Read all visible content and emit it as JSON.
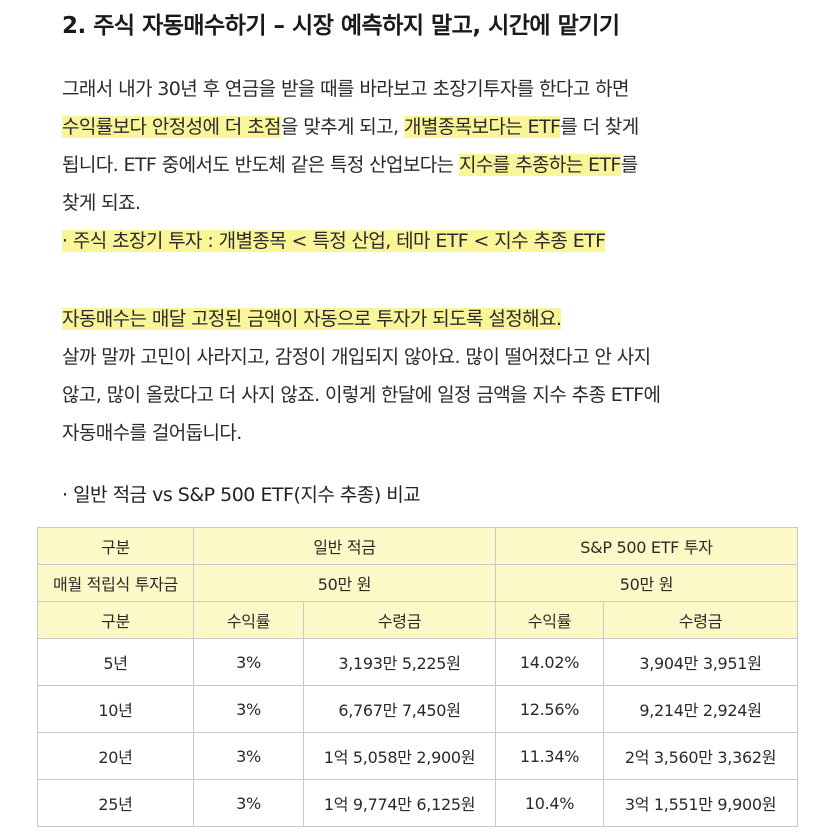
{
  "title": "2. 주식 자동매수하기 – 시장 예측하지 말고, 시간에 맡기기",
  "para1": {
    "l1": "그래서 내가 30년 후 연금을 받을 때를 바라보고 초장기투자를 한다고 하면",
    "l2a": "수익률보다 안정성에 더 초점",
    "l2b": "을 맞추게 되고, ",
    "l2c": "개별종목보다는 ETF",
    "l2d": "를 더 찾게",
    "l3a": "됩니다. ETF 중에서도 반도체 같은 특정 산업보다는 ",
    "l3b": "지수를 추종하는 ETF",
    "l3c": "를",
    "l4": "찾게 되죠.",
    "l5": "· 주식 초장기 투자 : 개별종목 < 특정 산업, 테마 ETF < 지수 추종 ETF"
  },
  "para2": {
    "l1": "자동매수는 매달 고정된 금액이 자동으로 투자가 되도록 설정해요.",
    "l2": "살까 말까 고민이 사라지고, 감정이 개입되지 않아요. 많이 떨어졌다고 안 사지",
    "l3": "않고, 많이 올랐다고 더 사지 않죠. 이렇게 한달에 일정 금액을 지수 추종 ETF에",
    "l4": "자동매수를 걸어둡니다."
  },
  "subhead": "· 일반 적금 vs S&P 500 ETF(지수 추종) 비교",
  "table": {
    "h_gubun": "구분",
    "h_savings": "일반 적금",
    "h_etf": "S&P 500 ETF 투자",
    "monthly_label": "매월 적립식 투자금",
    "savings_amount": "50만 원",
    "etf_amount": "50만 원",
    "sub_gubun": "구분",
    "sub_rate1": "수익률",
    "sub_amount1": "수령금",
    "sub_rate2": "수익률",
    "sub_amount2": "수령금",
    "rows": [
      {
        "period": "5년",
        "s_rate": "3%",
        "s_amount": "3,193만 5,225원",
        "e_rate": "14.02%",
        "e_amount": "3,904만 3,951원"
      },
      {
        "period": "10년",
        "s_rate": "3%",
        "s_amount": "6,767만 7,450원",
        "e_rate": "12.56%",
        "e_amount": "9,214만 2,924원"
      },
      {
        "period": "20년",
        "s_rate": "3%",
        "s_amount": "1억 5,058만 2,900원",
        "e_rate": "11.34%",
        "e_amount": "2억 3,560만 3,362원"
      },
      {
        "period": "25년",
        "s_rate": "3%",
        "s_amount": "1억 9,774만 6,125원",
        "e_rate": "10.4%",
        "e_amount": "3억 1,551만 9,900원"
      }
    ]
  }
}
